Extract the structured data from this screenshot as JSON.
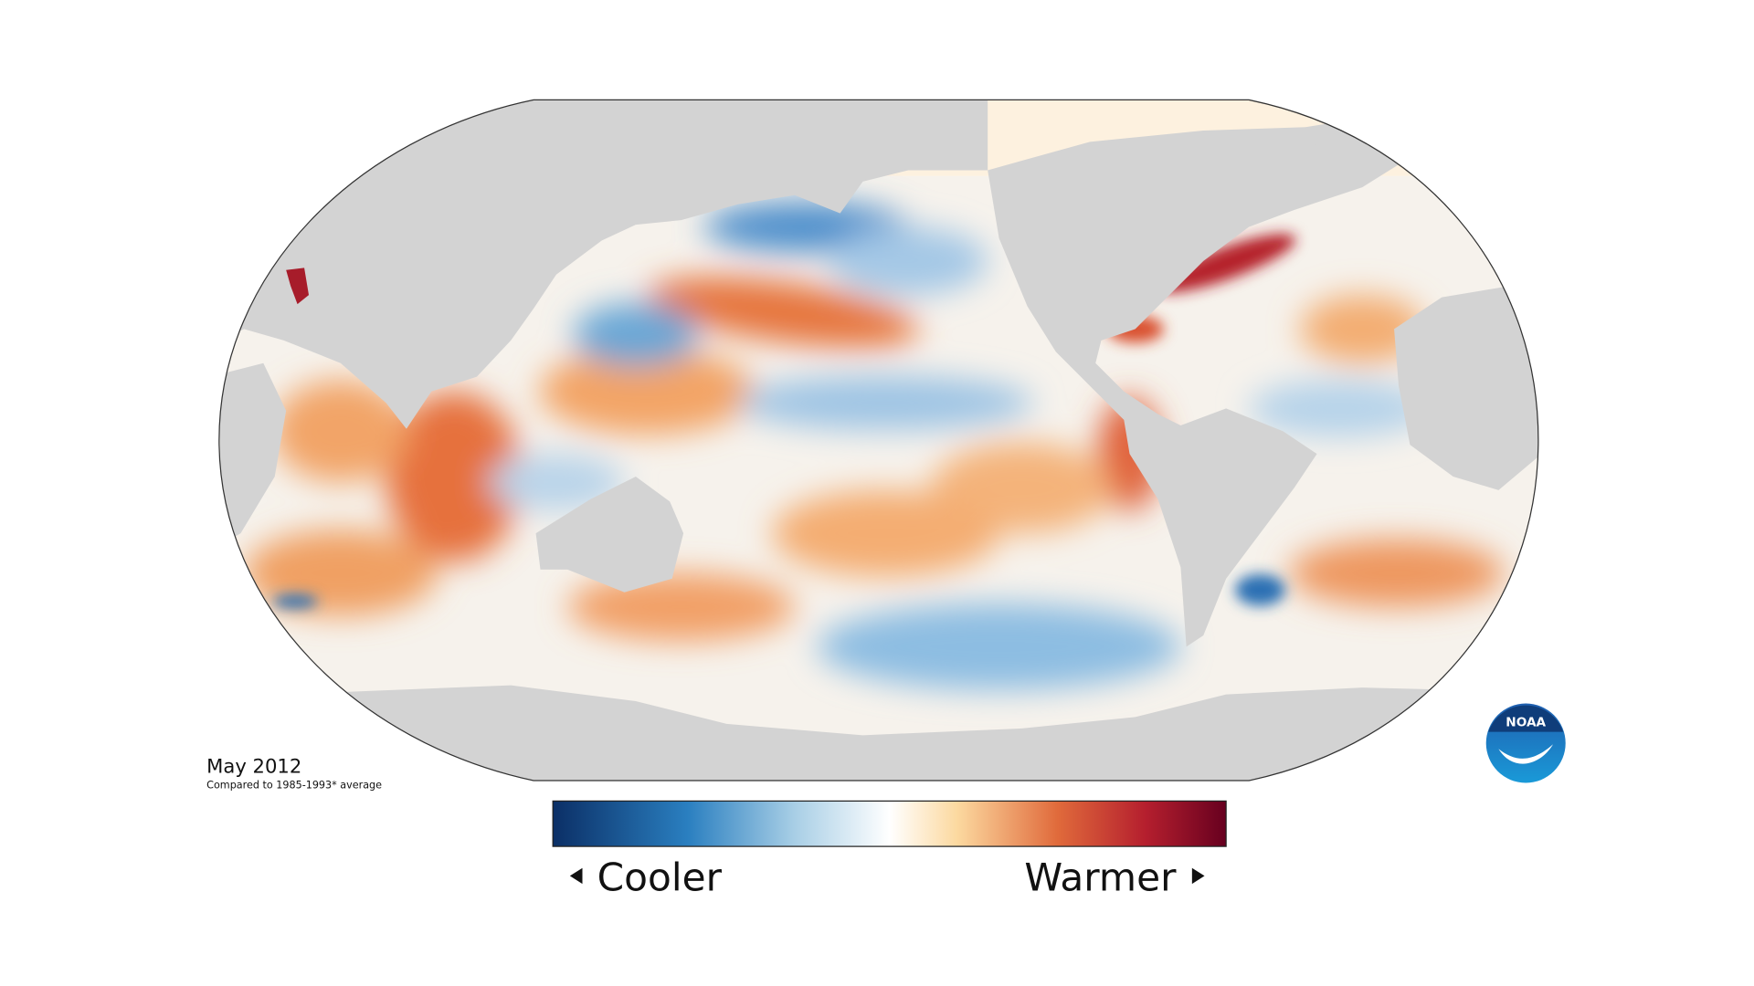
{
  "map": {
    "date_label": "May 2012",
    "subtitle": "Compared to 1985-1993* average"
  },
  "legend": {
    "low_label": "Cooler",
    "high_label": "Warmer"
  },
  "logo": {
    "text": "NOAA"
  }
}
